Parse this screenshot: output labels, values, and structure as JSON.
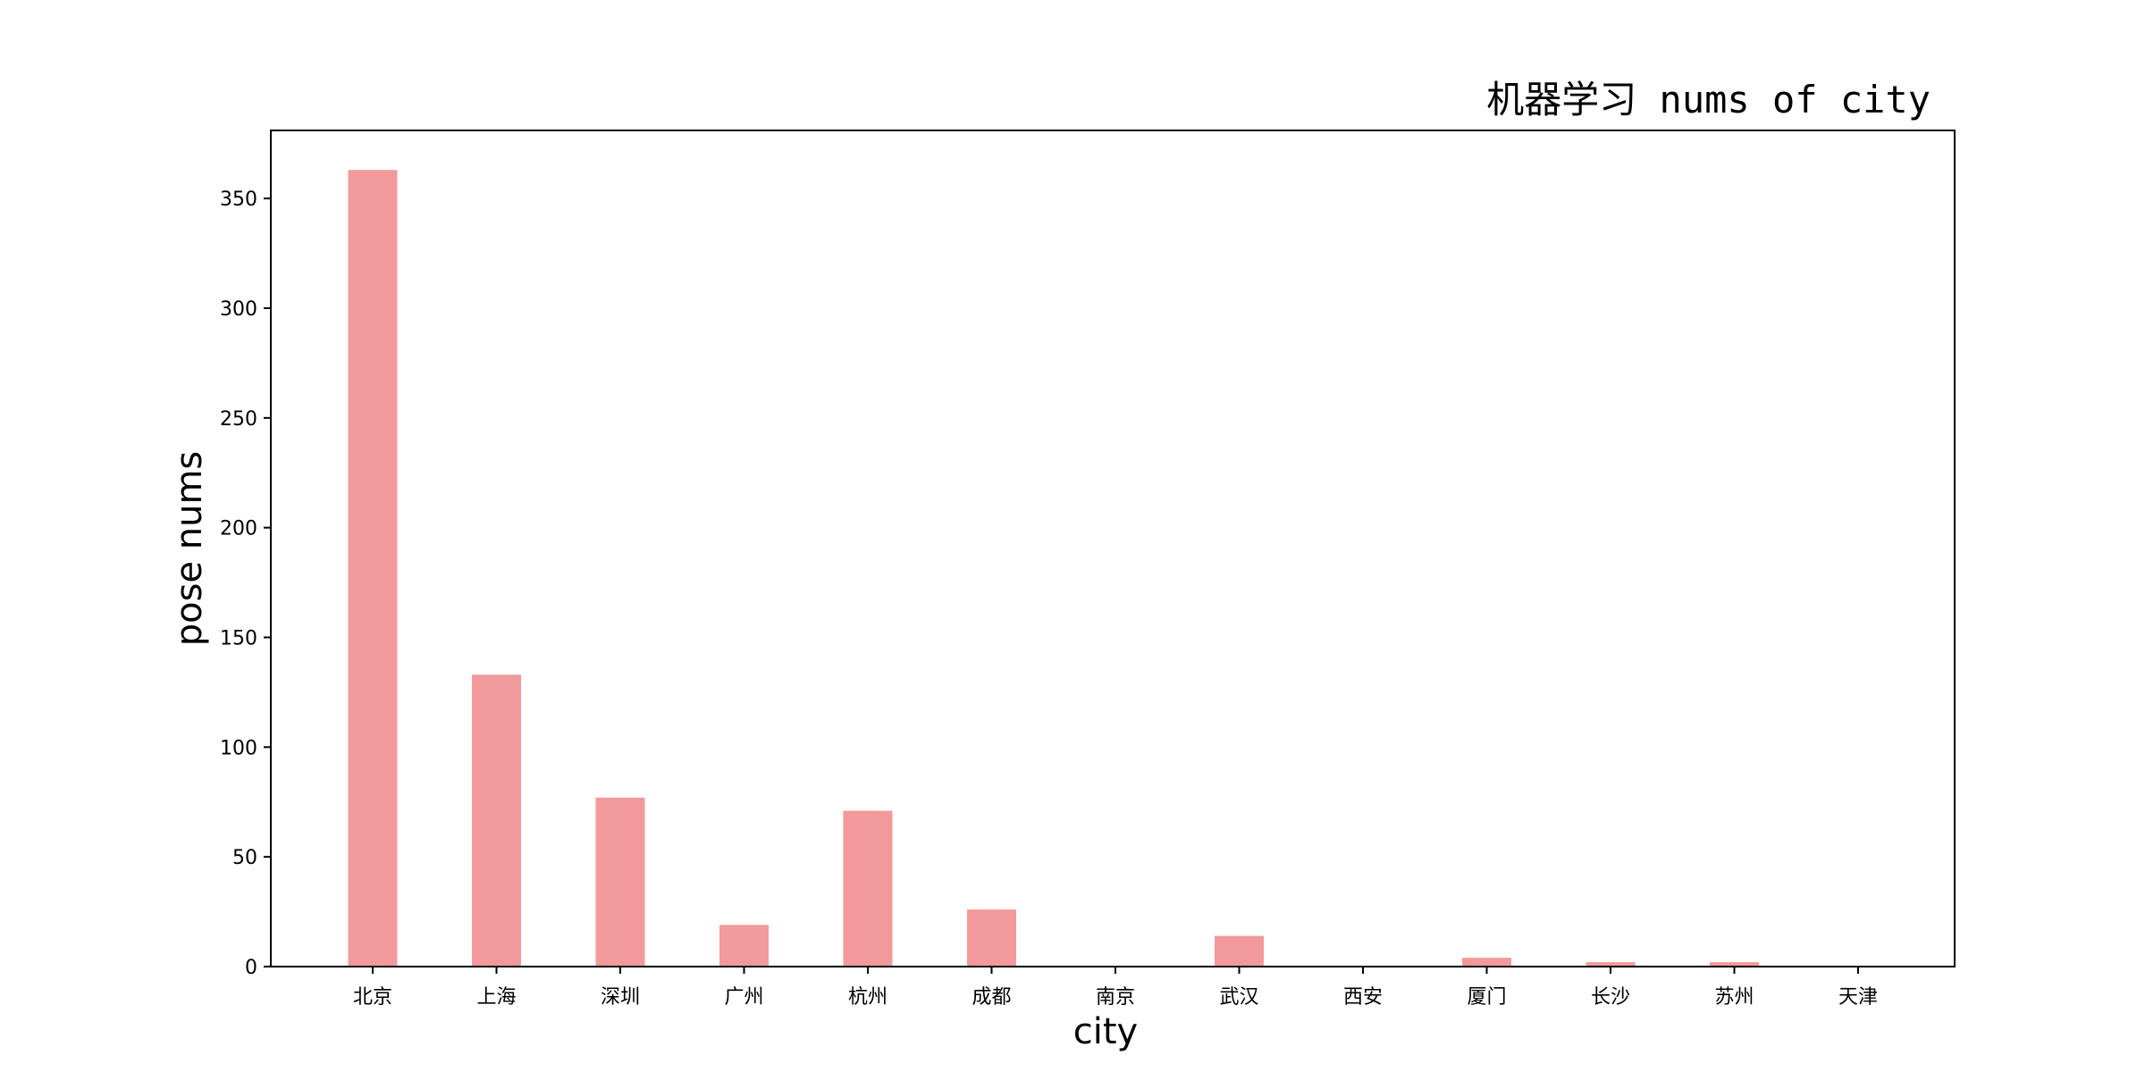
{
  "chart_data": {
    "type": "bar",
    "title": "机器学习 nums of city",
    "xlabel": "city",
    "ylabel": "pose nums",
    "categories": [
      "北京",
      "上海",
      "深圳",
      "广州",
      "杭州",
      "成都",
      "南京",
      "武汉",
      "西安",
      "厦门",
      "长沙",
      "苏州",
      "天津"
    ],
    "values": [
      363,
      133,
      77,
      19,
      71,
      26,
      0,
      14,
      0,
      4,
      2,
      2,
      0
    ],
    "yticks": [
      0,
      50,
      100,
      150,
      200,
      250,
      300,
      350
    ],
    "ylim": [
      0,
      381
    ],
    "grid": false,
    "bar_color": "#f29a9b",
    "axes_color": "#000000"
  }
}
